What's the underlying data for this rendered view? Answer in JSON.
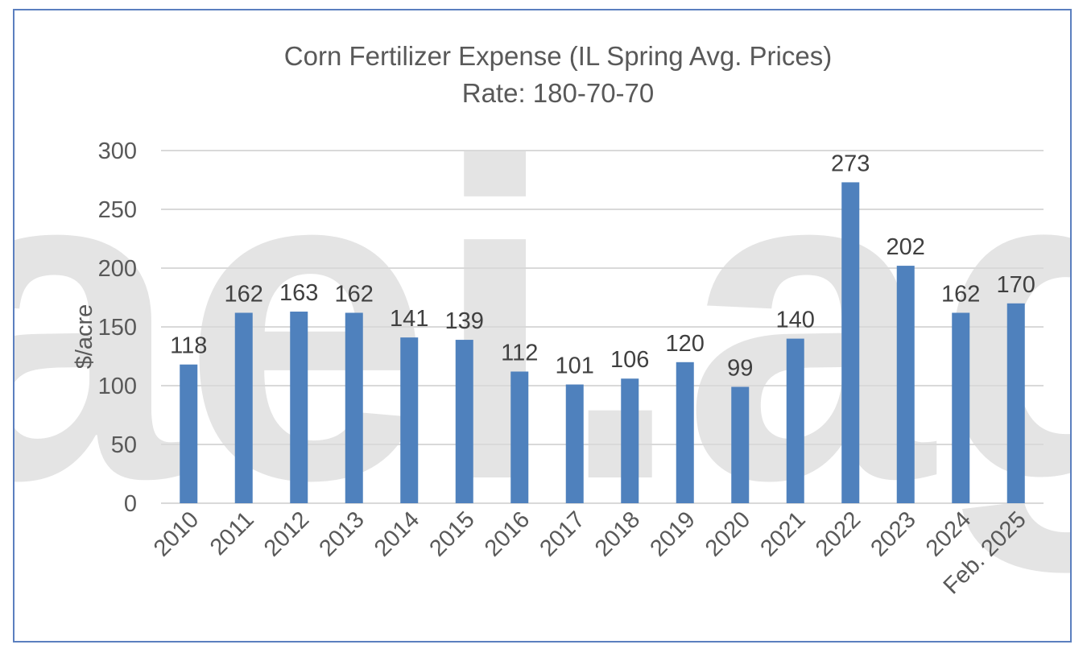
{
  "watermark_text": "aei.ag",
  "chart_data": {
    "type": "bar",
    "title": "Corn Fertilizer Expense (IL Spring Avg. Prices)",
    "subtitle": "Rate: 180-70-70",
    "xlabel": "",
    "ylabel": "$/acre",
    "ylim": [
      0,
      300
    ],
    "yticks": [
      0,
      50,
      100,
      150,
      200,
      250,
      300
    ],
    "grid": true,
    "legend": "none",
    "bar_color": "#4f81bd",
    "categories": [
      "2010",
      "2011",
      "2012",
      "2013",
      "2014",
      "2015",
      "2016",
      "2017",
      "2018",
      "2019",
      "2020",
      "2021",
      "2022",
      "2023",
      "2024",
      "Feb. 2025"
    ],
    "values": [
      118,
      162,
      163,
      162,
      141,
      139,
      112,
      101,
      106,
      120,
      99,
      140,
      273,
      202,
      162,
      170
    ]
  }
}
